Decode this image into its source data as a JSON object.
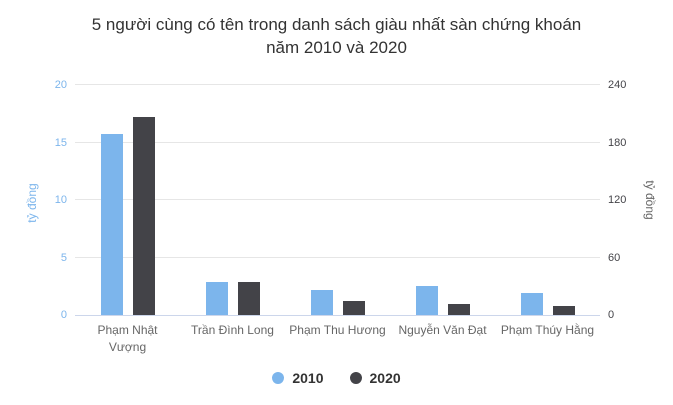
{
  "title": {
    "line1": "5 người cùng có tên trong danh sách giàu nhất sàn chứng khoán",
    "line2": "năm 2010 và 2020"
  },
  "colors": {
    "series_2010": "#7cb5ec",
    "series_2020": "#434348",
    "title_text": "#333333",
    "category_label": "#666666",
    "left_axis_text": "#7cb5ec",
    "right_axis_text": "#434348",
    "gridline": "#e6e6e6",
    "axis_line": "#ccd6eb",
    "background": "#ffffff"
  },
  "chart_data": {
    "type": "bar",
    "title": "5 người cùng có tên trong danh sách giàu nhất sàn chứng khoán năm 2010 và 2020",
    "categories": [
      "Phạm Nhật Vượng",
      "Trần Đình Long",
      "Phạm Thu Hương",
      "Nguyễn Văn Đạt",
      "Phạm Thúy Hằng"
    ],
    "x_tick_lines": [
      [
        "Phạm Nhật",
        "Vượng"
      ],
      [
        "Trần Đình Long"
      ],
      [
        "Phạm Thu Hương"
      ],
      [
        "Nguyễn Văn Đạt"
      ],
      [
        "Phạm Thúy Hằng"
      ]
    ],
    "series": [
      {
        "name": "2010",
        "color": "#7cb5ec",
        "axis": "left",
        "values": [
          15.7,
          2.9,
          2.2,
          2.5,
          1.9
        ]
      },
      {
        "name": "2020",
        "color": "#434348",
        "axis": "right",
        "values": [
          207,
          34,
          15,
          12,
          9.5
        ]
      }
    ],
    "y_axis_left": {
      "label": "tỷ đồng",
      "ticks": [
        0,
        5,
        10,
        15,
        20
      ],
      "min": 0,
      "max": 20
    },
    "y_axis_right": {
      "label": "tỷ đồng",
      "ticks": [
        0,
        60,
        120,
        180,
        240
      ],
      "min": 0,
      "max": 240
    },
    "grid": true,
    "legend_position": "bottom"
  }
}
